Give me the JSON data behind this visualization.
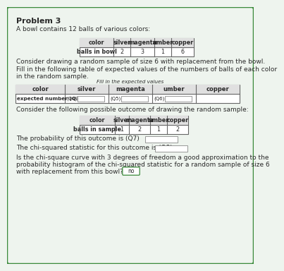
{
  "title": "Problem 3",
  "intro_text": "A bowl contains 12 balls of various colors:",
  "table1_header": [
    "color",
    "silver",
    "magenta",
    "umber",
    "copper"
  ],
  "table1_row": [
    "balls in bowl",
    "2",
    "3",
    "1",
    "6"
  ],
  "para1": "Consider drawing a random sample of size 6 with replacement from the bowl.",
  "para2a": "Fill in the following table of expected values of the numbers of balls of each color",
  "para2b": "in the random sample.",
  "fill_label": "Fill in the expected values",
  "table2_header": [
    "color",
    "silver",
    "magenta",
    "umber",
    "copper"
  ],
  "table2_row_label": "expected number",
  "table2_q_labels": [
    "(Q3)",
    "(Q4)",
    "(Q5)",
    "(Q6)"
  ],
  "para3": "Consider the following possible outcome of drawing the random sample:",
  "table3_header": [
    "color",
    "silver",
    "magenta",
    "umber",
    "copper"
  ],
  "table3_row": [
    "balls in sample",
    "1",
    "2",
    "1",
    "2"
  ],
  "prob_text": "The probability of this outcome is (Q7)",
  "chi_text": "The chi-squared statistic for this outcome is (Q8)",
  "approx_text1": "Is the chi-square curve with 3 degrees of freedom a good approximation to the",
  "approx_text2": "probability histogram of the chi-squared statistic for a random sample of size 6",
  "approx_text3": "with replacement from this bowl? (Q9)",
  "q9_answer": "no",
  "bg_color": "#eef4ee",
  "border_color": "#3a8a3a",
  "text_color": "#2a2a2a",
  "table_header_bg": "#e0e0e0",
  "table_line_color": "#666666",
  "input_box_color": "#cccccc"
}
